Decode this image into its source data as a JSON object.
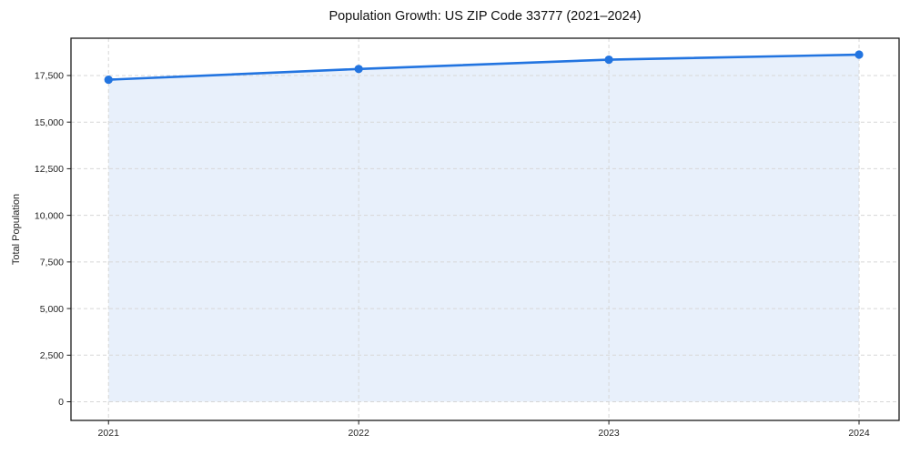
{
  "chart_data": {
    "type": "line",
    "title": "Population Growth: US ZIP Code 33777 (2021–2024)",
    "xlabel": "",
    "ylabel": "Total Population",
    "x": [
      2021,
      2022,
      2023,
      2024
    ],
    "series": [
      {
        "name": "Total Population",
        "values": [
          17275,
          17850,
          18350,
          18620
        ]
      }
    ],
    "xticks": {
      "values": [
        2021,
        2022,
        2023,
        2024
      ],
      "labels": [
        "2021",
        "2022",
        "2023",
        "2024"
      ]
    },
    "yticks": {
      "values": [
        0,
        2500,
        5000,
        7500,
        10000,
        12500,
        15000,
        17500
      ],
      "labels": [
        "0",
        "2,500",
        "5,000",
        "7,500",
        "10,000",
        "12,500",
        "15,000",
        "17,500"
      ]
    },
    "xlim": [
      2020.85,
      2024.16
    ],
    "ylim": [
      -1000,
      19500
    ],
    "grid": true,
    "grid_style": "dashed",
    "legend_position": "none",
    "area_fill_to": 0,
    "colors": {
      "line": "#2274e0",
      "marker": "#2274e0",
      "area_fill": "#e8f0fb",
      "gridline": "#d7d7d7",
      "spine": "#1a1a1a",
      "tick_text": "#222222",
      "title_text": "#111111"
    }
  }
}
